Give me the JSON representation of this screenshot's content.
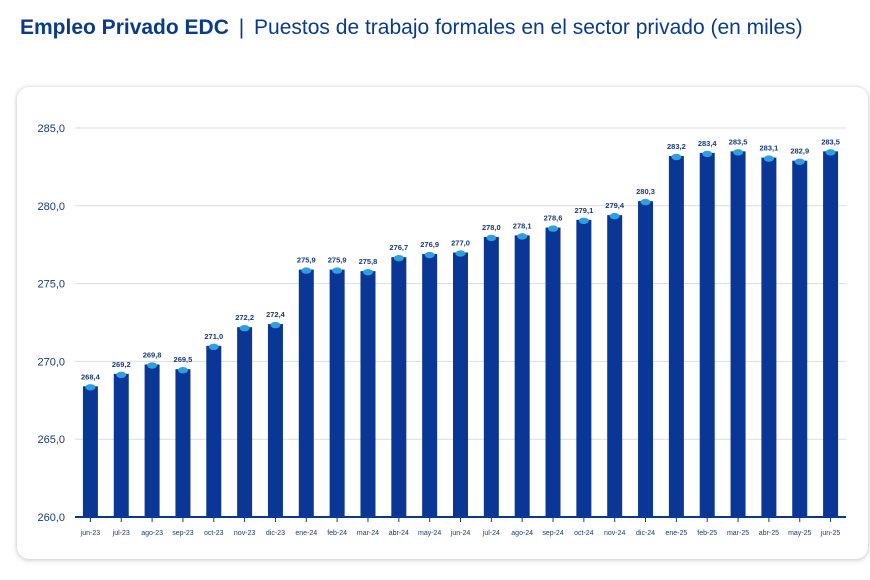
{
  "header": {
    "title_bold": "Empleo Privado EDC",
    "separator": "|",
    "title_rest": "Puestos de trabajo formales en el sector privado (en miles)"
  },
  "colors": {
    "bar": "#0a3796",
    "marker": "#2f9fe0",
    "grid": "#d9dde6",
    "title": "#0a3a8c"
  },
  "chart_data": {
    "type": "bar",
    "title": "Puestos de trabajo formales en el sector privado (en miles)",
    "xlabel": "",
    "ylabel": "",
    "ylim": [
      260,
      285
    ],
    "yticks": [
      "260,0",
      "265,0",
      "270,0",
      "275,0",
      "280,0",
      "285,0"
    ],
    "grid": true,
    "categories": [
      "jun-23",
      "jul-23",
      "ago-23",
      "sep-23",
      "oct-23",
      "nov-23",
      "dic-23",
      "ene-24",
      "feb-24",
      "mar-24",
      "abr-24",
      "may-24",
      "jun-24",
      "jul-24",
      "ago-24",
      "sep-24",
      "oct-24",
      "nov-24",
      "dic-24",
      "ene-25",
      "feb-25",
      "mar-25",
      "abr-25",
      "may-25",
      "jun-25"
    ],
    "values": [
      268.4,
      269.2,
      269.8,
      269.5,
      271.0,
      272.2,
      272.4,
      275.9,
      275.9,
      275.8,
      276.7,
      276.9,
      277.0,
      278.0,
      278.1,
      278.6,
      279.1,
      279.4,
      280.3,
      283.2,
      283.4,
      283.5,
      283.1,
      282.9,
      283.5
    ],
    "labels": [
      "268,4",
      "269,2",
      "269,8",
      "269,5",
      "271,0",
      "272,2",
      "272,4",
      "275,9",
      "275,9",
      "275,8",
      "276,7",
      "276,9",
      "277,0",
      "278,0",
      "278,1",
      "278,6",
      "279,1",
      "279,4",
      "280,3",
      "283,2",
      "283,4",
      "283,5",
      "283,1",
      "282,9",
      "283,5"
    ]
  }
}
